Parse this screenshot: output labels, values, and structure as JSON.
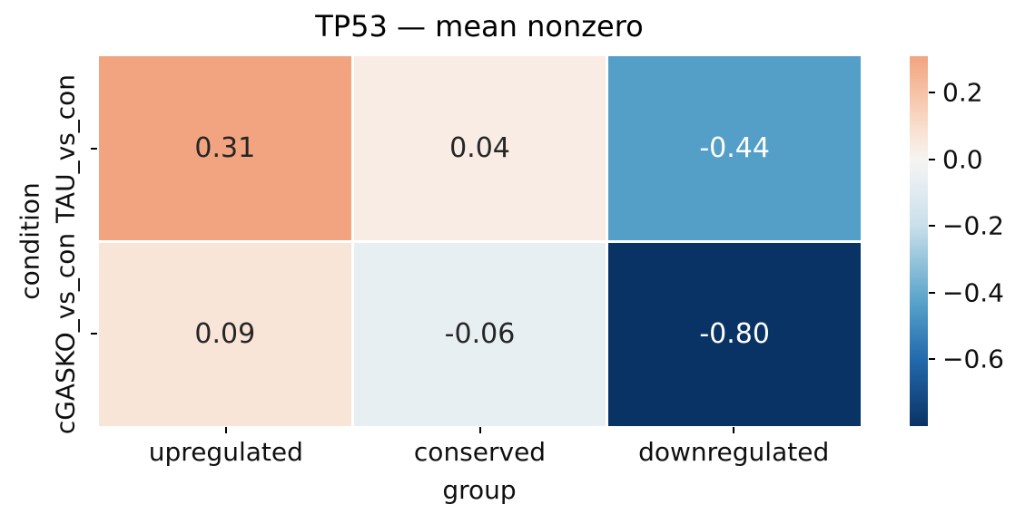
{
  "chart_data": {
    "type": "heatmap",
    "title": "TP53 — mean nonzero",
    "xlabel": "group",
    "ylabel": "condition",
    "columns": [
      "upregulated",
      "conserved",
      "downregulated"
    ],
    "rows": [
      "TAU_vs_con",
      "cGASKO_vs_con"
    ],
    "values": [
      [
        0.31,
        0.04,
        -0.44
      ],
      [
        0.09,
        -0.06,
        -0.8
      ]
    ],
    "cell_labels": [
      [
        "0.31",
        "0.04",
        "-0.44"
      ],
      [
        "0.09",
        "-0.06",
        "-0.80"
      ]
    ],
    "cell_colors": [
      [
        "#f2a480",
        "#f8ece4",
        "#539fc8"
      ],
      [
        "#f9e5d7",
        "#e8eff3",
        "#0a3365"
      ]
    ],
    "cell_text_colors": [
      [
        "#262626",
        "#262626",
        "#ffffff"
      ],
      [
        "#262626",
        "#262626",
        "#ffffff"
      ]
    ],
    "grid_line_color": "#ffffff",
    "legend_position": "right",
    "colorbar": {
      "vmin": -0.8,
      "vmax": 0.31,
      "tick_labels": [
        "0.2",
        "0.0",
        "−0.2",
        "−0.4",
        "−0.6"
      ],
      "tick_values": [
        0.2,
        0.0,
        -0.2,
        -0.4,
        -0.6
      ],
      "gradient_stops": [
        {
          "pos": 0,
          "color": "#f2a480"
        },
        {
          "pos": 9.9,
          "color": "#f6c2a6"
        },
        {
          "pos": 19.8,
          "color": "#f9e0d0"
        },
        {
          "pos": 27.9,
          "color": "#f7f4f1"
        },
        {
          "pos": 33.3,
          "color": "#e9eff3"
        },
        {
          "pos": 45.9,
          "color": "#c9dfeb"
        },
        {
          "pos": 67.6,
          "color": "#539fc8"
        },
        {
          "pos": 82.0,
          "color": "#2369ad"
        },
        {
          "pos": 100,
          "color": "#0a3365"
        }
      ]
    }
  }
}
